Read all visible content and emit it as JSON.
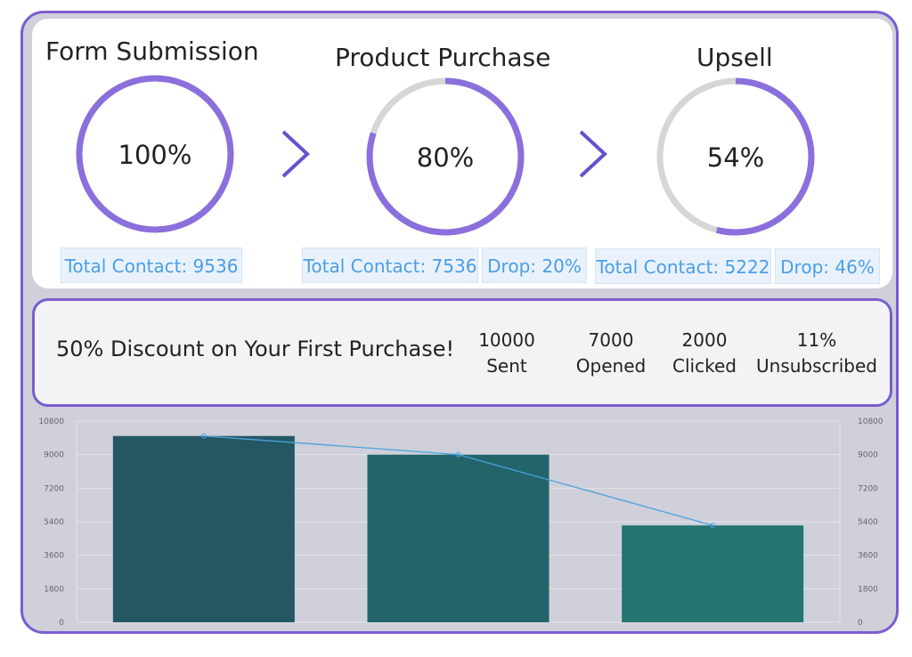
{
  "funnel": {
    "stages": [
      {
        "title": "Form Submission",
        "percent_label": "100%",
        "percent": 100,
        "total_label": "Total Contact: 9536",
        "drop_label": ""
      },
      {
        "title": "Product Purchase",
        "percent_label": "80%",
        "percent": 80,
        "total_label": "Total Contact: 7536",
        "drop_label": "Drop: 20%"
      },
      {
        "title": "Upsell",
        "percent_label": "54%",
        "percent": 54,
        "total_label": "Total Contact: 5222",
        "drop_label": "Drop: 46%"
      }
    ],
    "ring_color": "#8b6fdc",
    "track_color": "#d6d6d6",
    "chevron_color": "#6a4fcf"
  },
  "campaign": {
    "title": "50% Discount on Your First Purchase!",
    "stats": [
      {
        "value": "10000",
        "label": "Sent"
      },
      {
        "value": "7000",
        "label": "Opened"
      },
      {
        "value": "2000",
        "label": "Clicked"
      },
      {
        "value": "11%",
        "label": "Unsubscribed"
      }
    ]
  },
  "chart_data": {
    "type": "bar",
    "categories": [
      "",
      "",
      ""
    ],
    "series": [
      {
        "type": "bar",
        "values": [
          10000,
          9000,
          5200
        ],
        "colors": [
          "#245763",
          "#23646b",
          "#247471"
        ]
      },
      {
        "type": "line",
        "values": [
          10000,
          9000,
          5200
        ],
        "color": "#4aa3df"
      }
    ],
    "y_ticks": [
      "0",
      "1800",
      "3600",
      "5400",
      "7200",
      "9000",
      "10800"
    ],
    "ylim": [
      0,
      10800
    ],
    "y2_ticks": [
      "0",
      "1800",
      "3600",
      "5400",
      "7200",
      "9000",
      "10800"
    ],
    "grid": true
  }
}
